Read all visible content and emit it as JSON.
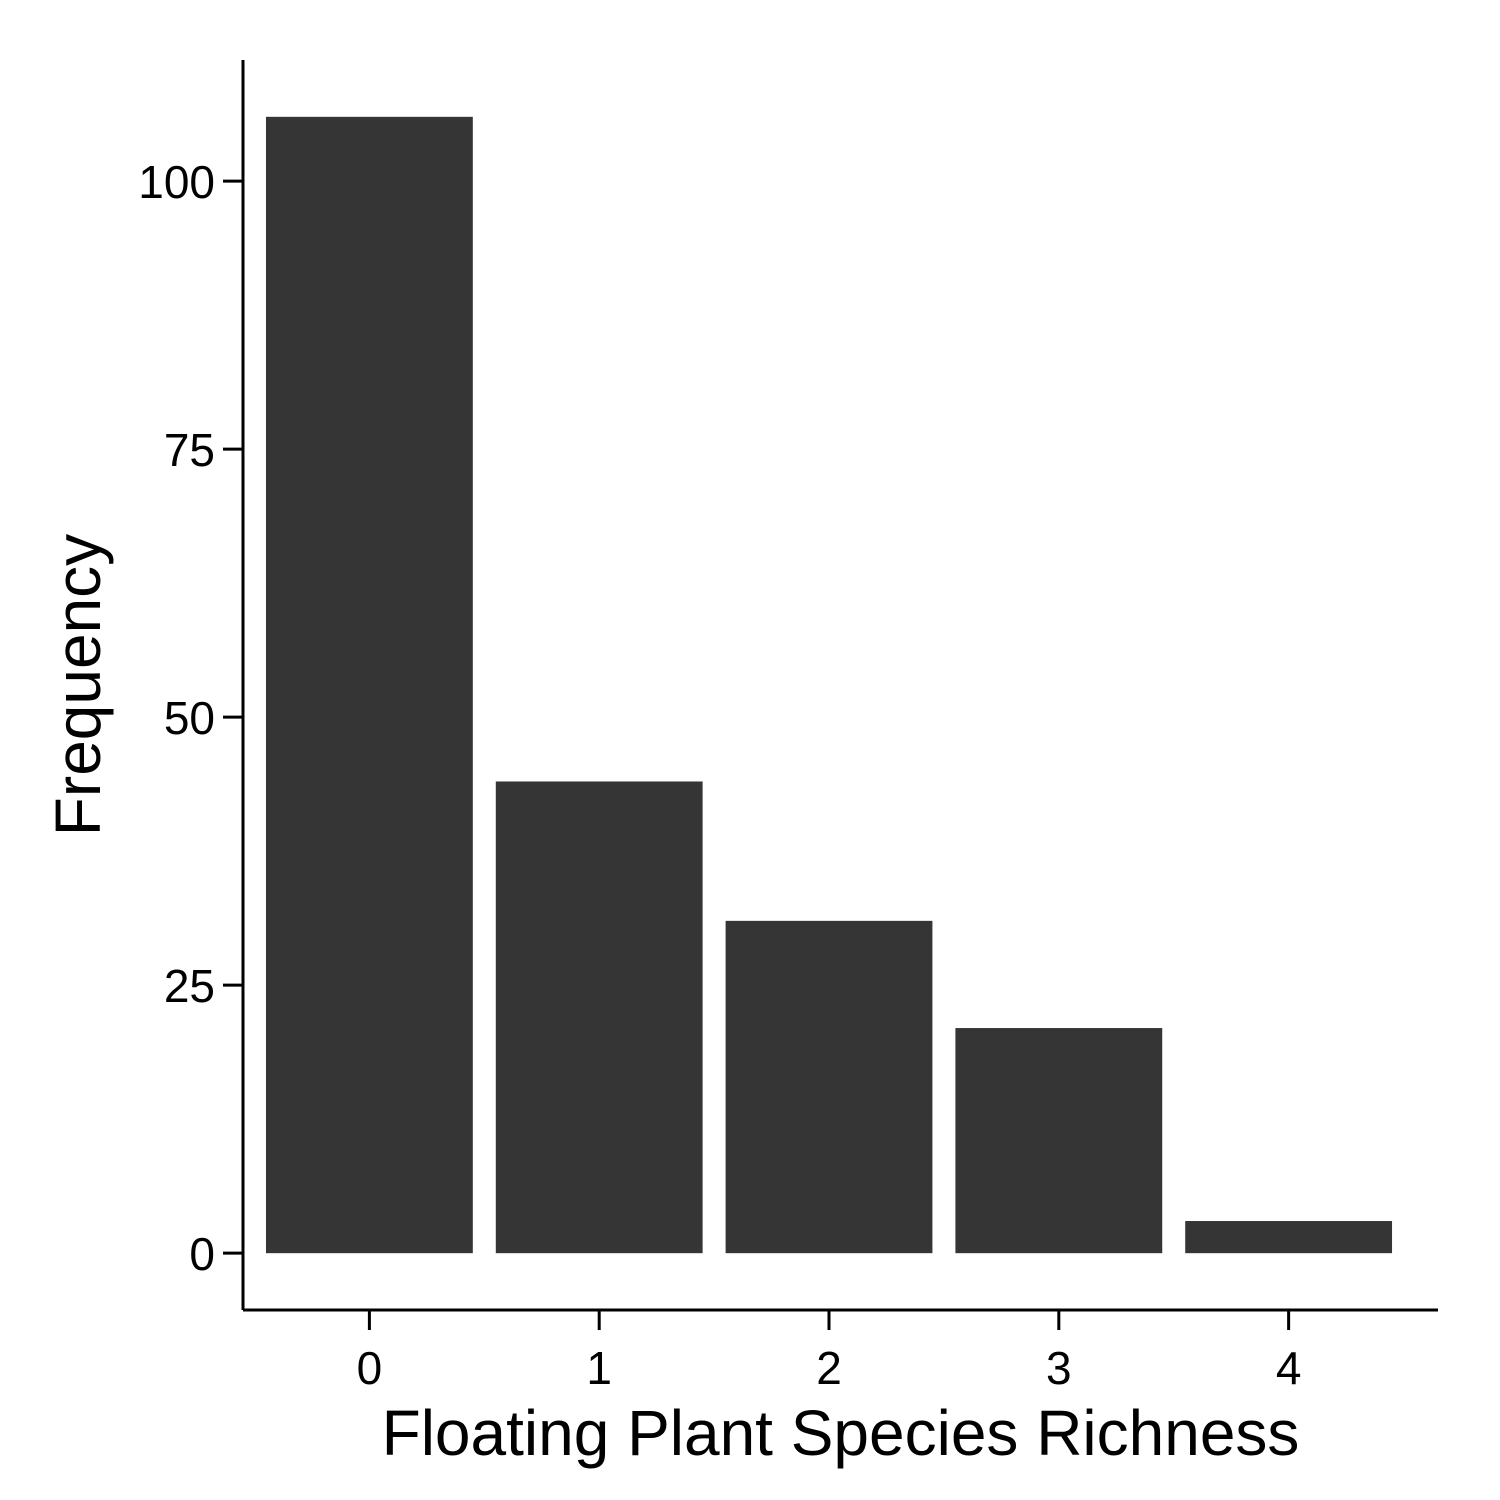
{
  "chart_data": {
    "type": "bar",
    "categories": [
      "0",
      "1",
      "2",
      "3",
      "4"
    ],
    "values": [
      106,
      44,
      31,
      21,
      3
    ],
    "xlabel": "Floating Plant Species Richness",
    "ylabel": "Frequency",
    "ylim": [
      -5.3,
      111.3
    ],
    "yticks": [
      0,
      25,
      50,
      75,
      100
    ],
    "bar_color": "#353535",
    "grid": false,
    "legend": "none"
  }
}
